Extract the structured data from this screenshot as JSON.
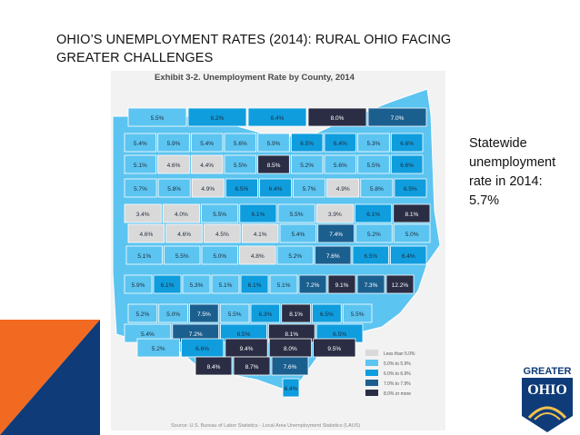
{
  "title": "OHIO’S UNEMPLOYMENT RATES (2014): RURAL OHIO FACING GREATER CHALLENGES",
  "exhibit_title": "Exhibit 3-2. Unemployment Rate by County, 2014",
  "statewide_note": "Statewide unemployment rate in 2014: 5.7%",
  "source": "Source: U.S. Bureau of Labor Statistics - Local Area Unemployment Statistics (LAUS)",
  "logo": {
    "line1": "GREATER",
    "line2": "OHIO"
  },
  "colors": {
    "less_than_5": "#d9d9d9",
    "5_to_5_9": "#5cc4f0",
    "6_to_6_9": "#0f9dde",
    "7_to_7_9": "#1b5f8f",
    "8_plus": "#2b2d44",
    "accent_orange": "#f26a21",
    "accent_blue": "#0f3b78"
  },
  "legend": [
    {
      "label": "Less than 5.0%",
      "color": "#d9d9d9"
    },
    {
      "label": "5.0% to 5.9%",
      "color": "#5cc4f0"
    },
    {
      "label": "6.0% to 6.9%",
      "color": "#0f9dde"
    },
    {
      "label": "7.0% to 7.9%",
      "color": "#1b5f8f"
    },
    {
      "label": "8.0% or more",
      "color": "#2b2d44"
    }
  ],
  "counties": [
    {
      "row": 0,
      "values": [
        "5.5%",
        "6.2%",
        "6.4%",
        "8.0%",
        "7.0%"
      ]
    },
    {
      "row": 1,
      "values": [
        "5.4%",
        "5.9%",
        "5.4%",
        "5.6%",
        "5.9%",
        "6.5%",
        "6.4%",
        "5.3%",
        "6.6%"
      ]
    },
    {
      "row": 2,
      "values": [
        "5.1%",
        "4.6%",
        "4.4%",
        "5.5%",
        "8.5%",
        "5.2%",
        "5.6%",
        "5.5%",
        "6.6%"
      ]
    },
    {
      "row": 3,
      "values": [
        "5.7%",
        "5.8%",
        "4.9%",
        "6.5%",
        "6.4%",
        "5.7%",
        "4.9%",
        "5.8%",
        "6.5%"
      ]
    },
    {
      "row": 4,
      "values": [
        "3.4%",
        "4.0%",
        "5.5%",
        "6.1%",
        "5.5%",
        "3.9%",
        "6.1%",
        "8.1%"
      ]
    },
    {
      "row": 5,
      "values": [
        "4.6%",
        "4.6%",
        "4.5%",
        "4.1%",
        "5.4%",
        "7.4%",
        "5.2%",
        "5.0%"
      ]
    },
    {
      "row": 6,
      "values": [
        "5.1%",
        "5.5%",
        "5.0%",
        "4.8%",
        "5.2%",
        "7.6%",
        "6.5%",
        "6.4%"
      ]
    },
    {
      "row": 7,
      "values": [
        "5.9%",
        "6.1%",
        "5.3%",
        "5.1%",
        "6.1%",
        "5.1%",
        "7.2%",
        "9.1%",
        "7.3%",
        "12.2%"
      ]
    },
    {
      "row": 8,
      "values": [
        "5.2%",
        "5.0%",
        "7.5%",
        "5.5%",
        "6.3%",
        "8.1%",
        "6.5%",
        "5.5%"
      ]
    },
    {
      "row": 9,
      "values": [
        "5.4%",
        "7.2%",
        "6.5%",
        "8.1%",
        "6.5%"
      ]
    },
    {
      "row": 10,
      "values": [
        "5.2%",
        "6.6%",
        "9.4%",
        "8.0%",
        "9.5%"
      ]
    },
    {
      "row": 11,
      "values": [
        "8.4%",
        "8.7%",
        "7.6%"
      ]
    },
    {
      "row": 12,
      "values": [
        "6.4%"
      ]
    }
  ]
}
